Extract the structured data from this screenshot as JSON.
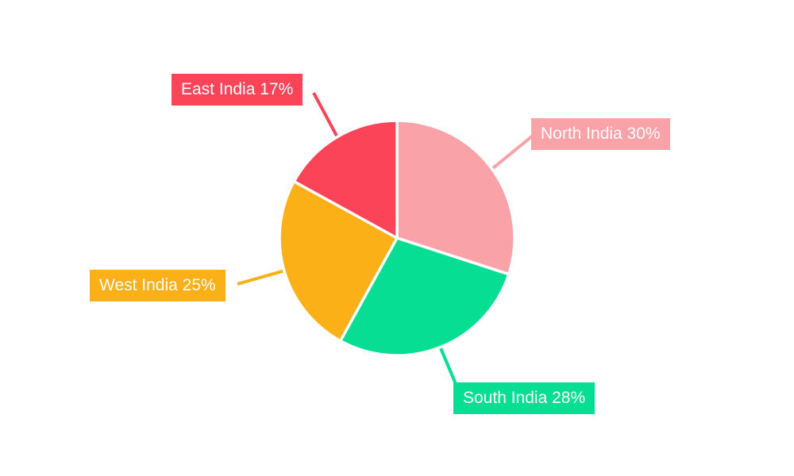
{
  "chart_data": {
    "type": "pie",
    "title": "",
    "categories": [
      "North India",
      "South India",
      "West India",
      "East India"
    ],
    "values": [
      30,
      28,
      25,
      17
    ],
    "unit": "%",
    "direction": "clockwise",
    "start_angle": "12-o-clock",
    "legend_position": "none",
    "background_color": "#ffffff",
    "label_text_color": "#fdfdfd",
    "slices": [
      {
        "label": "North India",
        "value": 30,
        "color": "#F9A3A8",
        "label_text": "North India 30%"
      },
      {
        "label": "South India",
        "value": 28,
        "color": "#06DE94",
        "label_text": "South India 28%"
      },
      {
        "label": "West India",
        "value": 25,
        "color": "#FCB017",
        "label_text": "West India 25%"
      },
      {
        "label": "East India",
        "value": 17,
        "color": "#FC4458",
        "label_text": "East India 17%"
      }
    ]
  }
}
